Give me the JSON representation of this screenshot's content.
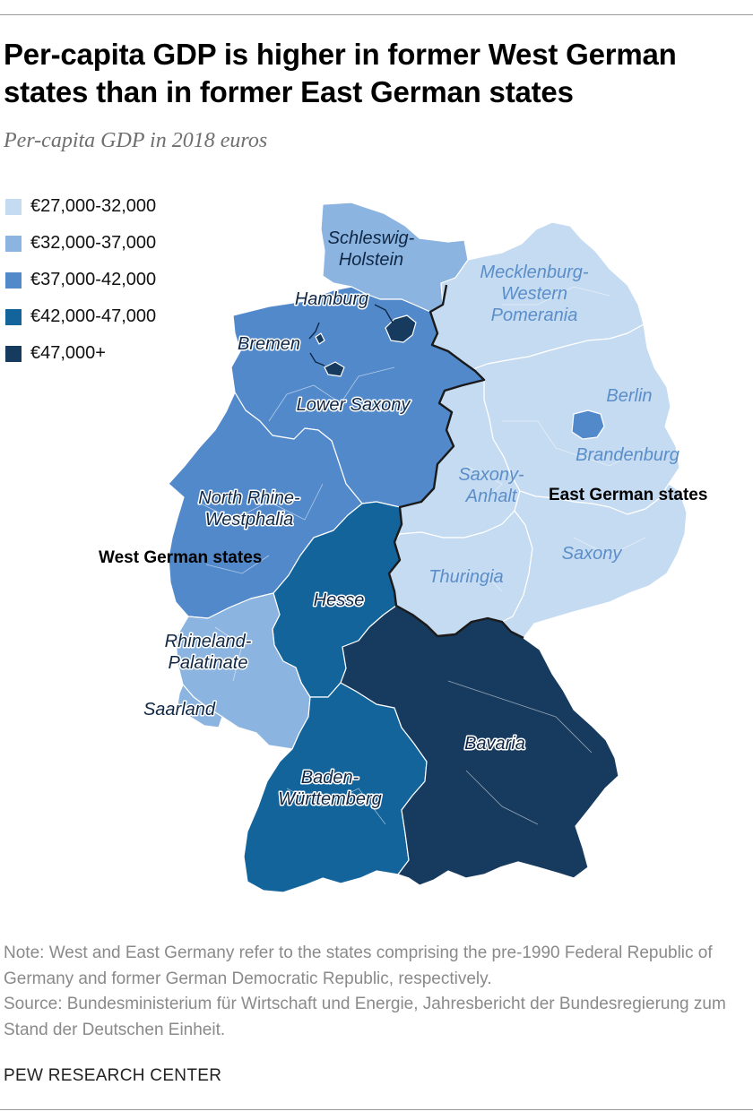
{
  "title": "Per-capita GDP is higher in former West German states than in former East German states",
  "subtitle": "Per-capita GDP in 2018 euros",
  "colors": {
    "tier1": "#c5dbf1",
    "tier2": "#8cb4e0",
    "tier3": "#5289cb",
    "tier4": "#14649c",
    "tier5": "#173a5f",
    "label_light": "#5b8ec9",
    "label_dark": "#0f2745",
    "east_west_border": "#1a1a1a"
  },
  "legend": [
    {
      "label": "€27,000-32,000",
      "tier": "tier1"
    },
    {
      "label": "€32,000-37,000",
      "tier": "tier2"
    },
    {
      "label": "€37,000-42,000",
      "tier": "tier3"
    },
    {
      "label": "€42,000-47,000",
      "tier": "tier4"
    },
    {
      "label": "€47,000+",
      "tier": "tier5"
    }
  ],
  "states": {
    "schleswig_holstein": {
      "lines": [
        "Schleswig-",
        "Holstein"
      ],
      "tier": "tier2"
    },
    "hamburg": {
      "lines": [
        "Hamburg"
      ],
      "tier": "tier5"
    },
    "bremen": {
      "lines": [
        "Bremen"
      ],
      "tier": "tier5"
    },
    "lower_saxony": {
      "lines": [
        "Lower Saxony"
      ],
      "tier": "tier3"
    },
    "north_rhine_westphalia": {
      "lines": [
        "North Rhine-",
        "Westphalia"
      ],
      "tier": "tier3"
    },
    "hesse": {
      "lines": [
        "Hesse"
      ],
      "tier": "tier4"
    },
    "rhineland_palatinate": {
      "lines": [
        "Rhineland-",
        "Palatinate"
      ],
      "tier": "tier2"
    },
    "saarland": {
      "lines": [
        "Saarland"
      ],
      "tier": "tier2"
    },
    "baden_wurttemberg": {
      "lines": [
        "Baden-",
        "Württemberg"
      ],
      "tier": "tier4"
    },
    "bavaria": {
      "lines": [
        "Bavaria"
      ],
      "tier": "tier5"
    },
    "mecklenburg_western_pomerania": {
      "lines": [
        "Mecklenburg-",
        "Western",
        "Pomerania"
      ],
      "tier": "tier1"
    },
    "berlin": {
      "lines": [
        "Berlin"
      ],
      "tier": "tier3"
    },
    "brandenburg": {
      "lines": [
        "Brandenburg"
      ],
      "tier": "tier1"
    },
    "saxony_anhalt": {
      "lines": [
        "Saxony-",
        "Anhalt"
      ],
      "tier": "tier1"
    },
    "thuringia": {
      "lines": [
        "Thuringia"
      ],
      "tier": "tier1"
    },
    "saxony": {
      "lines": [
        "Saxony"
      ],
      "tier": "tier1"
    }
  },
  "group_labels": {
    "east": "East German states",
    "west": "West German states"
  },
  "notes": {
    "note": "Note: West and East Germany refer to the states comprising the pre-1990 Federal Republic of Germany and former German Democratic Republic, respectively.",
    "source": "Source: Bundesministerium für Wirtschaft und Energie, Jahresbericht der Bundesregierung zum Stand der Deutschen Einheit."
  },
  "credit": "PEW RESEARCH CENTER"
}
